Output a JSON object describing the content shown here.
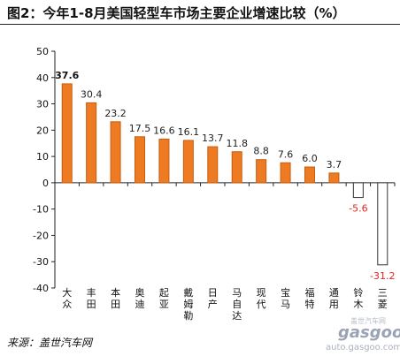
{
  "title": "图2：今年1-8月美国轻型车市场主要企业增速比较（%）",
  "source": "来源：盖世汽车网",
  "watermark": {
    "brand": "gasgoo",
    "cn": "盖世汽车网",
    "url": "auto.gasgoo.com"
  },
  "colors": {
    "positive_bar": "#ee7a22",
    "negative_bar": "#ffffff",
    "negative_label": "#e0281e",
    "axis": "#222222"
  },
  "chart_data": {
    "type": "bar",
    "categories": [
      "大众",
      "丰田",
      "本田",
      "奥迪",
      "起亚",
      "戴姆勒",
      "日产",
      "马自达",
      "现代",
      "宝马",
      "福特",
      "通用",
      "铃木",
      "三菱"
    ],
    "values": [
      37.6,
      30.4,
      23.2,
      17.5,
      16.6,
      16.1,
      13.7,
      11.8,
      8.8,
      7.6,
      6.0,
      3.7,
      -5.6,
      -31.2
    ],
    "labels": [
      "37.6",
      "30.4",
      "23.2",
      "17.5",
      "16.6",
      "16.1",
      "13.7",
      "11.8",
      "8.8",
      "7.6",
      "6.0",
      "3.7",
      "-5.6",
      "-31.2"
    ],
    "title": "图2：今年1-8月美国轻型车市场主要企业增速比较（%）",
    "xlabel": "",
    "ylabel": "",
    "ylim": [
      -40,
      50
    ],
    "yticks": [
      50,
      40,
      30,
      20,
      10,
      0,
      -10,
      -20,
      -30,
      -40
    ],
    "grid": false,
    "legend": "none"
  }
}
